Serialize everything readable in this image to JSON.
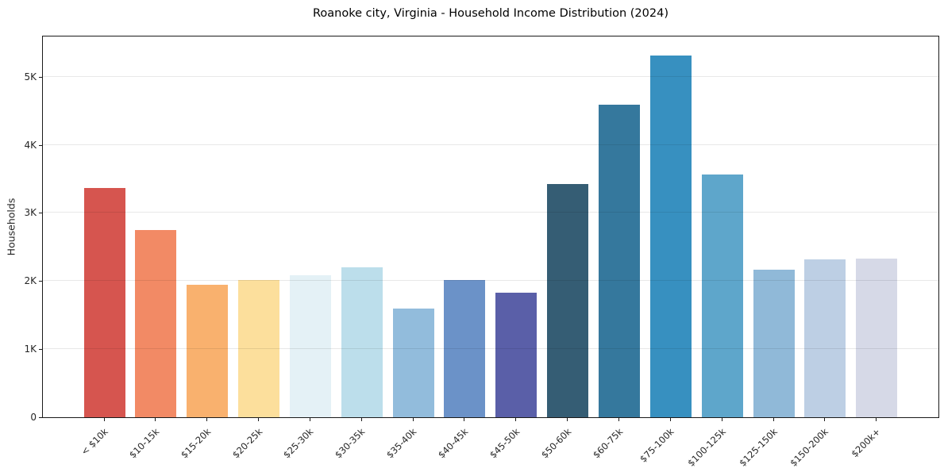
{
  "chart_data": {
    "type": "bar",
    "title": "Roanoke city, Virginia - Household Income Distribution (2024)",
    "xlabel": "",
    "ylabel": "Households",
    "categories": [
      "< $10k",
      "$10-15k",
      "$15-20k",
      "$20-25k",
      "$25-30k",
      "$30-35k",
      "$35-40k",
      "$40-45k",
      "$45-50k",
      "$50-60k",
      "$60-75k",
      "$75-100k",
      "$100-125k",
      "$125-150k",
      "$150-200k",
      "$200k+"
    ],
    "values": [
      3370,
      2750,
      1950,
      2010,
      2080,
      2200,
      1600,
      2020,
      1830,
      3420,
      4590,
      5310,
      3560,
      2170,
      2320,
      2330
    ],
    "bar_colors": [
      "#d6554f",
      "#f28a65",
      "#f9b16e",
      "#fcdf9c",
      "#e4f1f6",
      "#bcdeeb",
      "#92bcdc",
      "#6b92c8",
      "#5a5fa8",
      "#355d74",
      "#35789d",
      "#3790c0",
      "#5ea6cb",
      "#90b9d8",
      "#bdcfe4",
      "#d6d9e7"
    ],
    "yticks": [
      {
        "value": 0,
        "label": "0"
      },
      {
        "value": 1000,
        "label": "1K"
      },
      {
        "value": 2000,
        "label": "2K"
      },
      {
        "value": 3000,
        "label": "3K"
      },
      {
        "value": 4000,
        "label": "4K"
      },
      {
        "value": 5000,
        "label": "5K"
      }
    ],
    "ylim": [
      0,
      5590
    ],
    "grid": "horizontal",
    "gridline_color": "#e8e8e8",
    "spine_color": "#1a1a1a",
    "background": "#ffffff",
    "legend": "none"
  }
}
